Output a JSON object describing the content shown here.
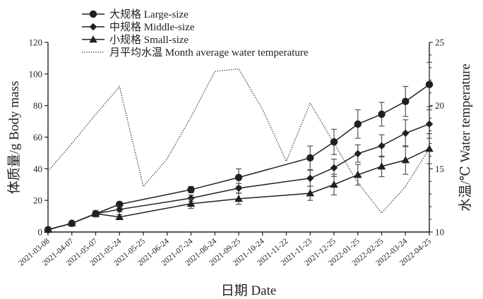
{
  "chart_data": {
    "type": "line",
    "title": "",
    "xlabel": "日期 Date",
    "ylabel": "体质量/g Body mass",
    "y2label": "水温/℃ Water temperature",
    "ylim": [
      0,
      120
    ],
    "y2lim": [
      10,
      25
    ],
    "yticks": [
      0,
      20,
      40,
      60,
      80,
      100,
      120
    ],
    "y2ticks": [
      10,
      15,
      20,
      25
    ],
    "grid": false,
    "legend_position": "top-left",
    "categories": [
      "2021-03-08",
      "2021-04-07",
      "2021-05-07",
      "2021-05-24",
      "2021-05-25",
      "2021-06-24",
      "2021-07-24",
      "2021-08-24",
      "2021-09-25",
      "2021-10-24",
      "2021-11-22",
      "2021-11-23",
      "2021-12-25",
      "2022-01-25",
      "2022-02-25",
      "2022-03-24",
      "2022-04-25"
    ],
    "series": [
      {
        "name": "大规格 Large-size",
        "axis": "left",
        "marker": "circle",
        "style": "solid",
        "points": [
          {
            "x": "2021-03-08",
            "y": 1.5,
            "err": 0.5
          },
          {
            "x": "2021-04-07",
            "y": 5.5,
            "err": 0.8
          },
          {
            "x": "2021-05-07",
            "y": 11.6,
            "err": 2.0
          },
          {
            "x": "2021-05-24",
            "y": 17.5,
            "err": 1.5
          },
          {
            "x": "2021-07-24",
            "y": 26.8,
            "err": 2.0
          },
          {
            "x": "2021-09-25",
            "y": 34.5,
            "err": 5.5
          },
          {
            "x": "2021-11-23",
            "y": 46.9,
            "err": 7.5
          },
          {
            "x": "2021-12-25",
            "y": 57.0,
            "err": 8.0
          },
          {
            "x": "2022-01-25",
            "y": 68.3,
            "err": 9.0
          },
          {
            "x": "2022-02-25",
            "y": 74.5,
            "err": 7.5
          },
          {
            "x": "2022-03-24",
            "y": 82.6,
            "err": 9.5
          },
          {
            "x": "2022-04-25",
            "y": 93.3,
            "err": 14.0
          }
        ]
      },
      {
        "name": "中规格 Middle-size",
        "axis": "left",
        "marker": "diamond",
        "style": "solid",
        "points": [
          {
            "x": "2021-03-08",
            "y": 1.5,
            "err": 0.5
          },
          {
            "x": "2021-04-07",
            "y": 5.5,
            "err": 0.8
          },
          {
            "x": "2021-05-07",
            "y": 11.6,
            "err": 2.0
          },
          {
            "x": "2021-05-24",
            "y": 14.3,
            "err": 1.5
          },
          {
            "x": "2021-07-24",
            "y": 21.4,
            "err": 2.0
          },
          {
            "x": "2021-09-25",
            "y": 27.7,
            "err": 3.0
          },
          {
            "x": "2021-11-23",
            "y": 34.0,
            "err": 5.0
          },
          {
            "x": "2021-12-25",
            "y": 40.6,
            "err": 5.5
          },
          {
            "x": "2022-01-25",
            "y": 49.6,
            "err": 5.5
          },
          {
            "x": "2022-02-25",
            "y": 54.5,
            "err": 7.0
          },
          {
            "x": "2022-03-24",
            "y": 62.5,
            "err": 8.5
          },
          {
            "x": "2022-04-25",
            "y": 68.3,
            "err": 9.0
          }
        ]
      },
      {
        "name": "小规格 Small-size",
        "axis": "left",
        "marker": "triangle",
        "style": "solid",
        "points": [
          {
            "x": "2021-03-08",
            "y": 1.5,
            "err": 0.5
          },
          {
            "x": "2021-04-07",
            "y": 5.5,
            "err": 0.8
          },
          {
            "x": "2021-05-07",
            "y": 11.6,
            "err": 2.0
          },
          {
            "x": "2021-05-24",
            "y": 9.5,
            "err": 1.5
          },
          {
            "x": "2021-07-24",
            "y": 17.9,
            "err": 3.0
          },
          {
            "x": "2021-09-25",
            "y": 21.0,
            "err": 3.5
          },
          {
            "x": "2021-11-23",
            "y": 24.5,
            "err": 4.5
          },
          {
            "x": "2021-12-25",
            "y": 30.0,
            "err": 6.5
          },
          {
            "x": "2022-01-25",
            "y": 36.2,
            "err": 6.5
          },
          {
            "x": "2022-02-25",
            "y": 41.5,
            "err": 6.5
          },
          {
            "x": "2022-03-24",
            "y": 45.5,
            "err": 9.0
          },
          {
            "x": "2022-04-25",
            "y": 52.7,
            "err": 9.5
          }
        ]
      },
      {
        "name": "月平均水温 Month average water temperature",
        "axis": "right",
        "marker": "none",
        "style": "dotted",
        "points": [
          {
            "x": "2021-03-08",
            "y": 14.8
          },
          {
            "x": "2021-04-07",
            "y": 17.0
          },
          {
            "x": "2021-05-07",
            "y": 19.3
          },
          {
            "x": "2021-05-24",
            "y": 21.5
          },
          {
            "x": "2021-05-25",
            "y": 13.6
          },
          {
            "x": "2021-06-24",
            "y": 15.8
          },
          {
            "x": "2021-07-24",
            "y": 19.1
          },
          {
            "x": "2021-08-24",
            "y": 22.7
          },
          {
            "x": "2021-09-25",
            "y": 22.9
          },
          {
            "x": "2021-10-24",
            "y": 19.7
          },
          {
            "x": "2021-11-22",
            "y": 15.6
          },
          {
            "x": "2021-11-23",
            "y": 20.2
          },
          {
            "x": "2021-12-25",
            "y": 17.0
          },
          {
            "x": "2022-01-25",
            "y": 13.9
          },
          {
            "x": "2022-02-25",
            "y": 11.5
          },
          {
            "x": "2022-03-24",
            "y": 13.6
          },
          {
            "x": "2022-04-25",
            "y": 16.6
          }
        ]
      }
    ]
  }
}
